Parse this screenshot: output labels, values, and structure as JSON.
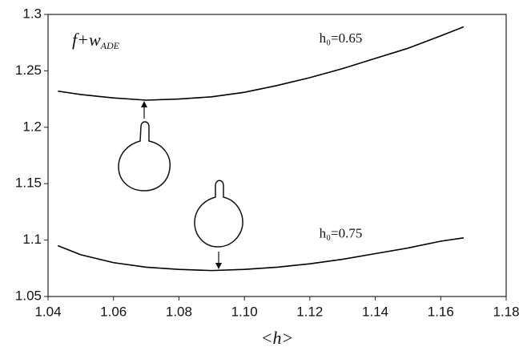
{
  "chart_data": {
    "type": "line",
    "title": {
      "main": "f+w",
      "sub": "ADE"
    },
    "x_label": "<h>",
    "x": [
      1.043,
      1.05,
      1.06,
      1.07,
      1.08,
      1.09,
      1.1,
      1.11,
      1.12,
      1.13,
      1.14,
      1.15,
      1.16,
      1.167
    ],
    "series": [
      {
        "name": "h₀=0.65",
        "color": "#000000",
        "values": [
          1.232,
          1.229,
          1.226,
          1.224,
          1.225,
          1.227,
          1.231,
          1.237,
          1.244,
          1.252,
          1.261,
          1.27,
          1.281,
          1.289
        ]
      },
      {
        "name": "h₀=0.75",
        "color": "#000000",
        "values": [
          1.095,
          1.087,
          1.08,
          1.076,
          1.074,
          1.073,
          1.074,
          1.076,
          1.079,
          1.083,
          1.088,
          1.093,
          1.099,
          1.102
        ]
      }
    ],
    "xlim": [
      1.04,
      1.18
    ],
    "xticks": [
      1.04,
      1.06,
      1.08,
      {
        "value": 1.1,
        "label": "1.10"
      },
      1.12,
      1.14,
      1.16,
      1.18
    ],
    "ylim": [
      1.05,
      1.3
    ],
    "yticks": [
      1.05,
      1.1,
      1.15,
      1.2,
      1.25,
      1.3
    ]
  }
}
